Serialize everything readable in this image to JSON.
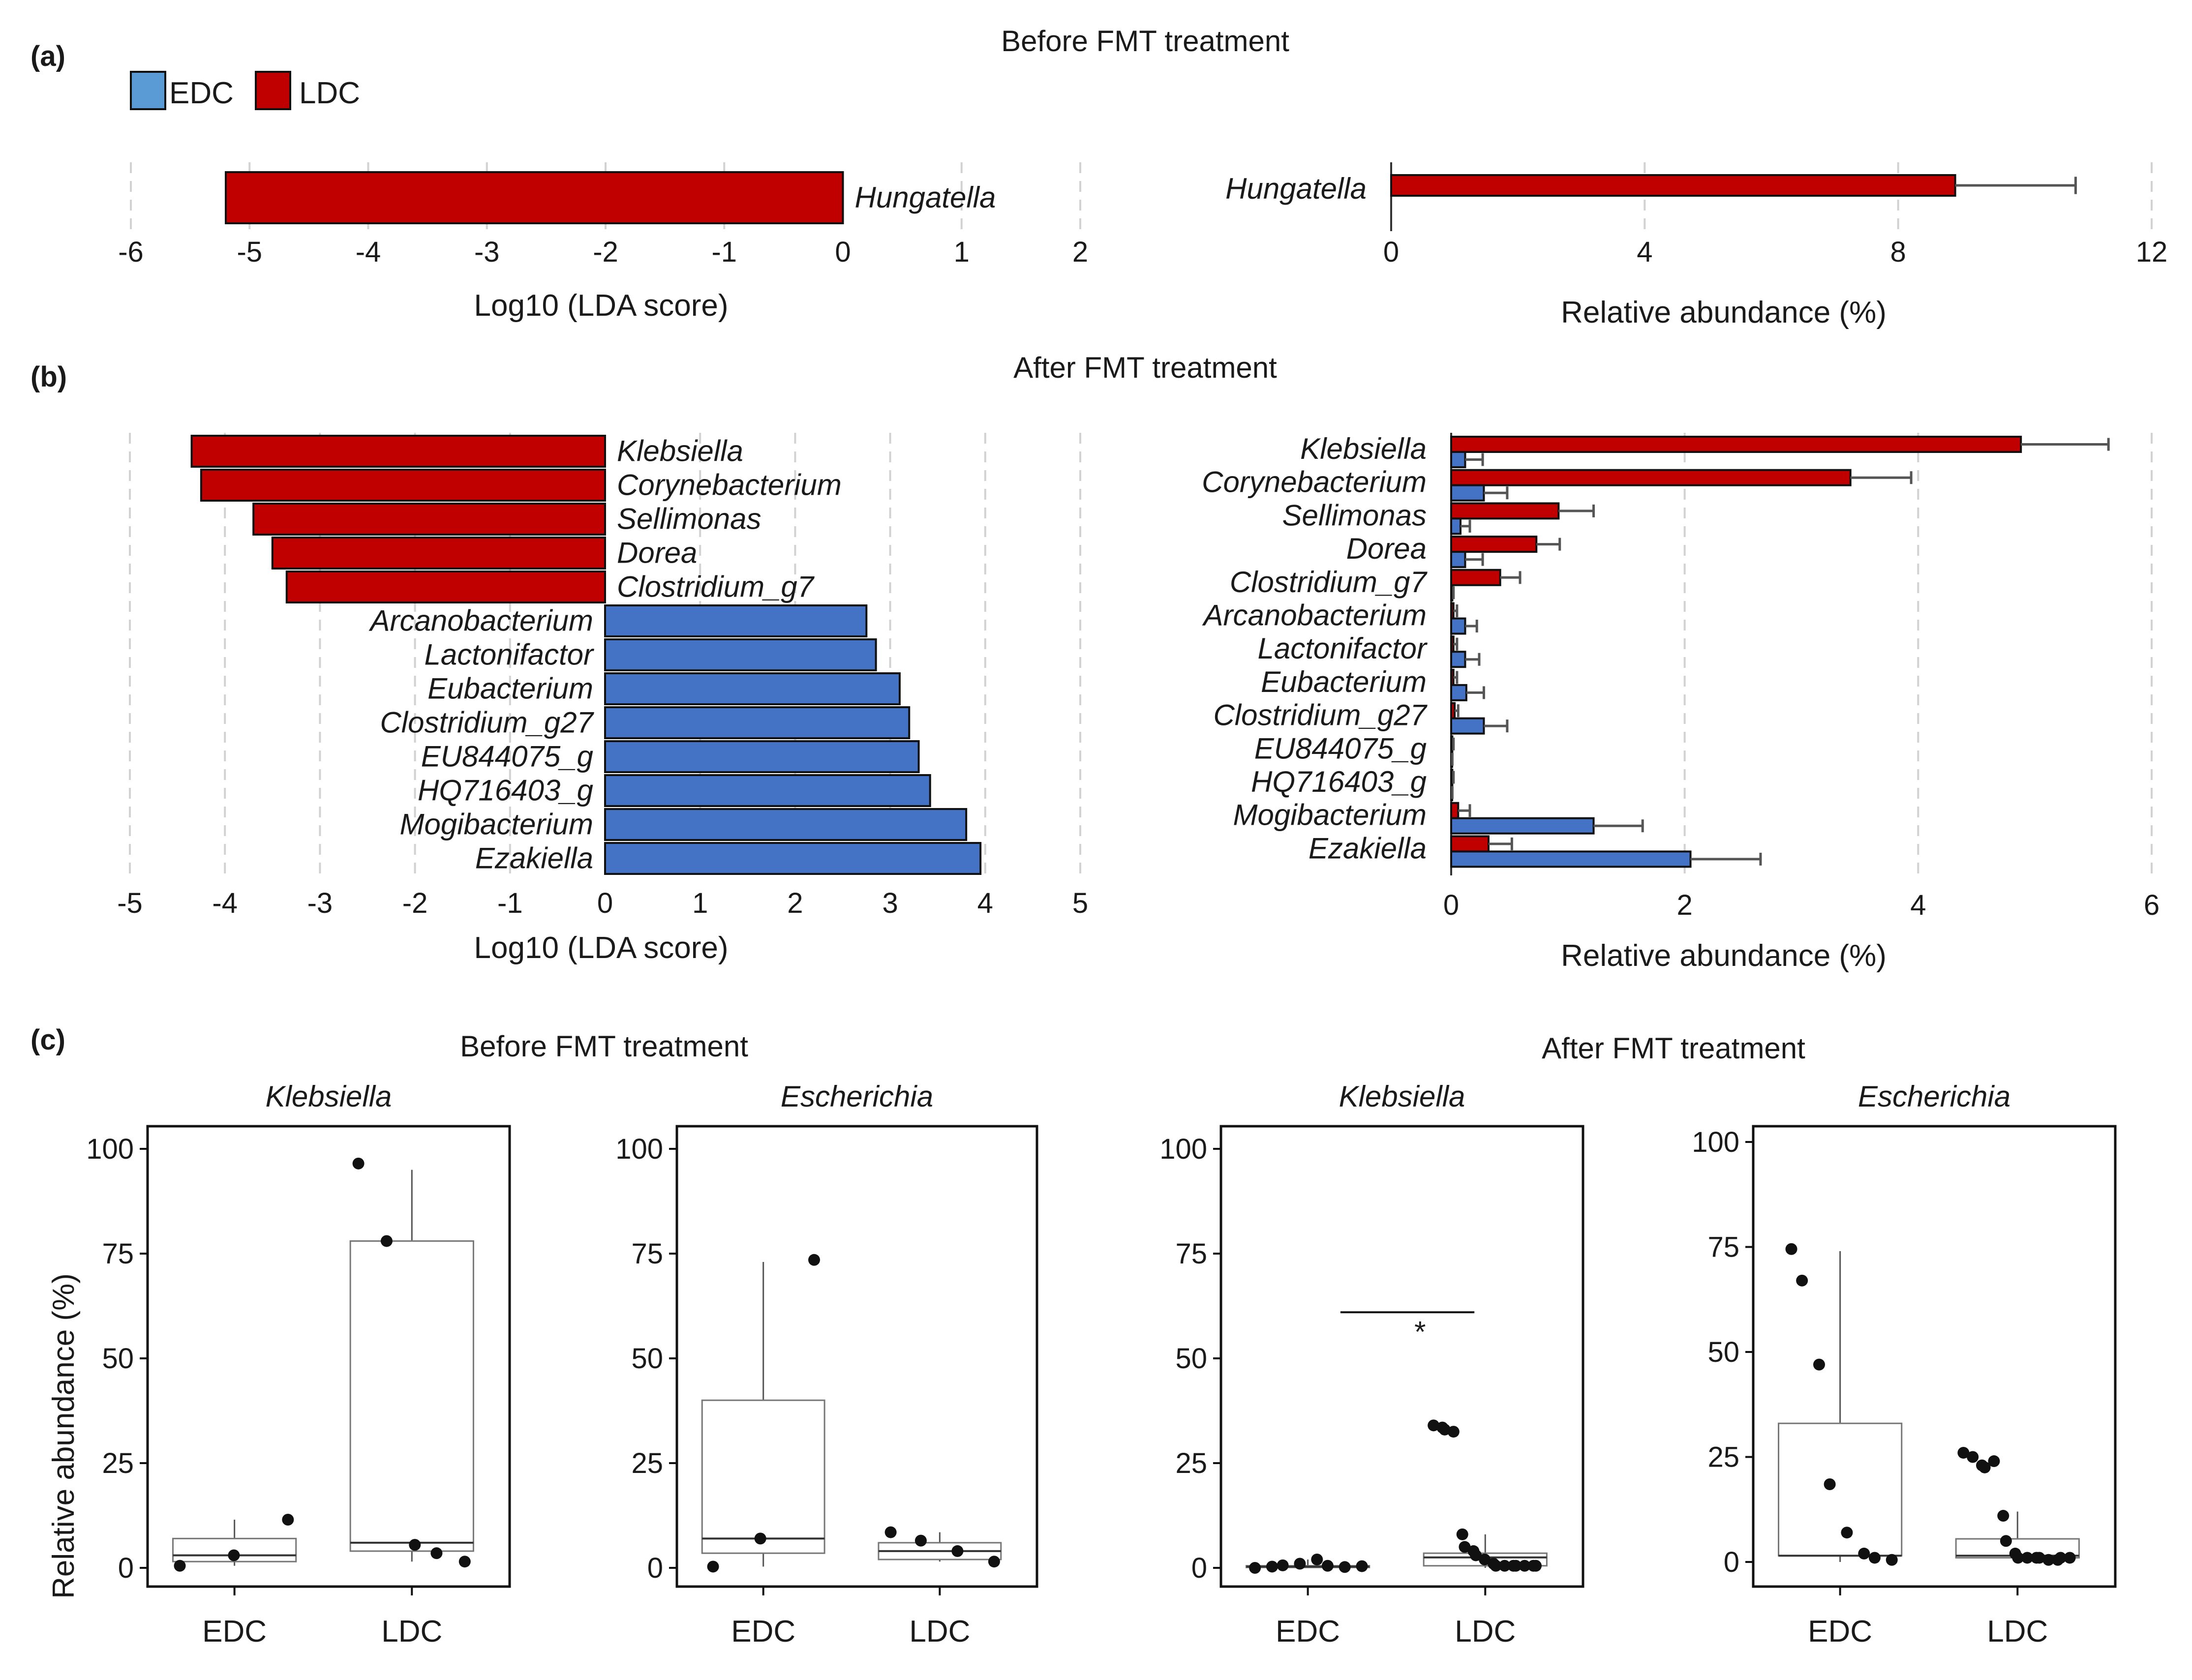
{
  "panel_labels": {
    "a": "(a)",
    "b": "(b)",
    "c": "(c)"
  },
  "legend": [
    {
      "label": "EDC",
      "color": "#5b9bd5"
    },
    {
      "label": "LDC",
      "color": "#c00000"
    }
  ],
  "colors": {
    "EDC": "#4472c4",
    "LDC": "#c00000",
    "edge": "#111111",
    "grid": "#d2d2d2"
  },
  "chart_data": [
    {
      "id": "a_lda",
      "type": "bar",
      "orientation": "horizontal",
      "title": "Before FMT treatment",
      "xlabel": "Log10 (LDA score)",
      "xlim": [
        -6,
        2
      ],
      "xticks": [
        -6,
        -5,
        -4,
        -3,
        -2,
        -1,
        0,
        1,
        2
      ],
      "categories": [
        "Hungatella"
      ],
      "values": [
        -5.2
      ],
      "groups": [
        "LDC"
      ]
    },
    {
      "id": "a_abund",
      "type": "bar",
      "orientation": "horizontal",
      "title": "Before FMT treatment",
      "xlabel": "Relative abundance (%)",
      "xlim": [
        0,
        12
      ],
      "xticks": [
        0,
        4,
        8,
        12
      ],
      "categories": [
        "Hungatella"
      ],
      "series": [
        {
          "name": "LDC",
          "values": [
            8.9
          ],
          "errors": [
            1.9
          ]
        }
      ]
    },
    {
      "id": "b_lda",
      "type": "bar",
      "orientation": "horizontal",
      "title": "After FMT treatment",
      "xlabel": "Log10 (LDA score)",
      "xlim": [
        -5,
        5
      ],
      "xticks": [
        -5,
        -4,
        -3,
        -2,
        -1,
        0,
        1,
        2,
        3,
        4,
        5
      ],
      "categories": [
        "Klebsiella",
        "Corynebacterium",
        "Sellimonas",
        "Dorea",
        "Clostridium_g7",
        "Arcanobacterium",
        "Lactonifactor",
        "Eubacterium",
        "Clostridium_g27",
        "EU844075_g",
        "HQ716403_g",
        "Mogibacterium",
        "Ezakiella"
      ],
      "values": [
        -4.35,
        -4.25,
        -3.7,
        -3.5,
        -3.35,
        2.75,
        2.85,
        3.1,
        3.2,
        3.3,
        3.42,
        3.8,
        3.95
      ],
      "groups": [
        "LDC",
        "LDC",
        "LDC",
        "LDC",
        "LDC",
        "EDC",
        "EDC",
        "EDC",
        "EDC",
        "EDC",
        "EDC",
        "EDC",
        "EDC"
      ]
    },
    {
      "id": "b_abund",
      "type": "bar",
      "orientation": "horizontal",
      "title": "After FMT treatment",
      "xlabel": "Relative abundance (%)",
      "xlim": [
        0,
        6
      ],
      "xticks": [
        0,
        2,
        4,
        6
      ],
      "categories": [
        "Klebsiella",
        "Corynebacterium",
        "Sellimonas",
        "Dorea",
        "Clostridium_g7",
        "Arcanobacterium",
        "Lactonifactor",
        "Eubacterium",
        "Clostridium_g27",
        "EU844075_g",
        "HQ716403_g",
        "Mogibacterium",
        "Ezakiella"
      ],
      "series": [
        {
          "name": "LDC",
          "values": [
            4.88,
            3.42,
            0.92,
            0.73,
            0.42,
            0.02,
            0.02,
            0.02,
            0.03,
            0.01,
            0.01,
            0.06,
            0.32
          ],
          "errors": [
            0.75,
            0.52,
            0.3,
            0.2,
            0.17,
            0.03,
            0.03,
            0.03,
            0.03,
            0.01,
            0.01,
            0.1,
            0.2
          ]
        },
        {
          "name": "EDC",
          "values": [
            0.12,
            0.28,
            0.08,
            0.12,
            0.01,
            0.12,
            0.12,
            0.13,
            0.28,
            0.005,
            0.005,
            1.22,
            2.05
          ],
          "errors": [
            0.15,
            0.2,
            0.08,
            0.15,
            0.01,
            0.1,
            0.12,
            0.15,
            0.2,
            0.005,
            0.005,
            0.42,
            0.6
          ]
        }
      ]
    },
    {
      "id": "c_before_klebsiella",
      "type": "box",
      "group_title": "Before FMT treatment",
      "title": "Klebsiella",
      "ylabel": "Relative abundance (%)",
      "ylim": [
        0,
        100
      ],
      "yticks": [
        0,
        25,
        50,
        75,
        100
      ],
      "categories": [
        "EDC",
        "LDC"
      ],
      "boxes": [
        {
          "q1": 1.5,
          "median": 3,
          "q3": 7,
          "whisker_low": 0.5,
          "whisker_high": 11.5,
          "points": [
            0.5,
            3,
            11.5
          ]
        },
        {
          "q1": 4,
          "median": 6,
          "q3": 78,
          "whisker_low": 1.5,
          "whisker_high": 95,
          "points": [
            96.5,
            78,
            5.5,
            3.5,
            1.5
          ]
        }
      ],
      "annotation": ""
    },
    {
      "id": "c_before_escherichia",
      "type": "box",
      "group_title": "Before FMT treatment",
      "title": "Escherichia",
      "ylabel": "",
      "ylim": [
        0,
        100
      ],
      "yticks": [
        0,
        25,
        50,
        75,
        100
      ],
      "categories": [
        "EDC",
        "LDC"
      ],
      "boxes": [
        {
          "q1": 3.5,
          "median": 7,
          "q3": 40,
          "whisker_low": 0.3,
          "whisker_high": 73,
          "points": [
            0.3,
            7,
            73.5
          ]
        },
        {
          "q1": 2,
          "median": 4,
          "q3": 6,
          "whisker_low": 1.5,
          "whisker_high": 8.5,
          "points": [
            8.5,
            6.5,
            4,
            1.5
          ]
        }
      ],
      "annotation": ""
    },
    {
      "id": "c_after_klebsiella",
      "type": "box",
      "group_title": "After FMT treatment",
      "title": "Klebsiella",
      "ylabel": "",
      "ylim": [
        0,
        100
      ],
      "yticks": [
        0,
        25,
        50,
        75,
        100
      ],
      "categories": [
        "EDC",
        "LDC"
      ],
      "boxes": [
        {
          "q1": 0.1,
          "median": 0.3,
          "q3": 0.5,
          "whisker_low": 0,
          "whisker_high": 2,
          "points": [
            0,
            0.3,
            0.6,
            1,
            2,
            0.5,
            0.2,
            0.4
          ]
        },
        {
          "q1": 0.5,
          "median": 2.5,
          "q3": 3.5,
          "whisker_low": 0,
          "whisker_high": 8,
          "points": [
            34,
            33.5,
            33,
            32.5,
            8,
            5,
            4,
            3,
            2,
            1,
            0.5,
            0.5,
            0.5,
            0.5,
            0.5,
            0.5,
            0.5
          ]
        }
      ],
      "annotation": "*"
    },
    {
      "id": "c_after_escherichia",
      "type": "box",
      "group_title": "After FMT treatment",
      "title": "Escherichia",
      "ylabel": "",
      "ylim": [
        0,
        100
      ],
      "yticks": [
        0,
        25,
        50,
        75,
        100
      ],
      "categories": [
        "EDC",
        "LDC"
      ],
      "boxes": [
        {
          "q1": 1.5,
          "median": 1.5,
          "q3": 33,
          "whisker_low": 0,
          "whisker_high": 74,
          "points": [
            74.5,
            67,
            47,
            18.5,
            7,
            2,
            1,
            0.5
          ]
        },
        {
          "q1": 1,
          "median": 1.5,
          "q3": 5.5,
          "whisker_low": 0,
          "whisker_high": 12,
          "points": [
            26,
            25,
            23,
            22.5,
            24,
            11,
            5,
            2,
            1,
            1,
            1,
            1,
            0.5,
            0.5,
            1,
            1
          ]
        }
      ],
      "annotation": ""
    }
  ]
}
